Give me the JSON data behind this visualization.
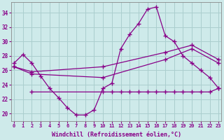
{
  "x": [
    0,
    1,
    2,
    3,
    4,
    5,
    6,
    7,
    8,
    9,
    10,
    11,
    12,
    13,
    14,
    15,
    16,
    17,
    18,
    19,
    20,
    21,
    22,
    23
  ],
  "line1_x": [
    0,
    1,
    2,
    3,
    4,
    5,
    6,
    7,
    8,
    9,
    10,
    11,
    12,
    13,
    14,
    15,
    16,
    17,
    18,
    19,
    20,
    21,
    22,
    23
  ],
  "line1_y": [
    27.0,
    28.2,
    27.0,
    25.2,
    23.5,
    22.2,
    20.8,
    19.8,
    19.8,
    20.5,
    23.5,
    24.2,
    29.0,
    31.0,
    32.5,
    34.5,
    34.8,
    30.8,
    30.0,
    28.0,
    27.0,
    26.0,
    25.0,
    23.5
  ],
  "line2_x": [
    2,
    10,
    11,
    12,
    13,
    14,
    15,
    16,
    17,
    18,
    19,
    20,
    21,
    22,
    23
  ],
  "line2_y": [
    23.0,
    23.0,
    23.0,
    23.0,
    23.0,
    23.0,
    23.0,
    23.0,
    23.0,
    23.0,
    23.0,
    23.0,
    23.0,
    23.0,
    23.5
  ],
  "line3_x": [
    0,
    2,
    10,
    17,
    20,
    23
  ],
  "line3_y": [
    26.5,
    25.5,
    25.0,
    27.5,
    29.0,
    27.0
  ],
  "line4_x": [
    0,
    2,
    10,
    17,
    20,
    23
  ],
  "line4_y": [
    26.5,
    25.8,
    26.5,
    28.5,
    29.5,
    27.5
  ],
  "background_color": "#ceeaea",
  "grid_color": "#aacece",
  "line_color": "#880088",
  "xlabel": "Windchill (Refroidissement éolien,°C)",
  "yticks": [
    20,
    22,
    24,
    26,
    28,
    30,
    32,
    34
  ],
  "ylim": [
    19.0,
    35.5
  ],
  "xlim": [
    -0.3,
    23.3
  ]
}
